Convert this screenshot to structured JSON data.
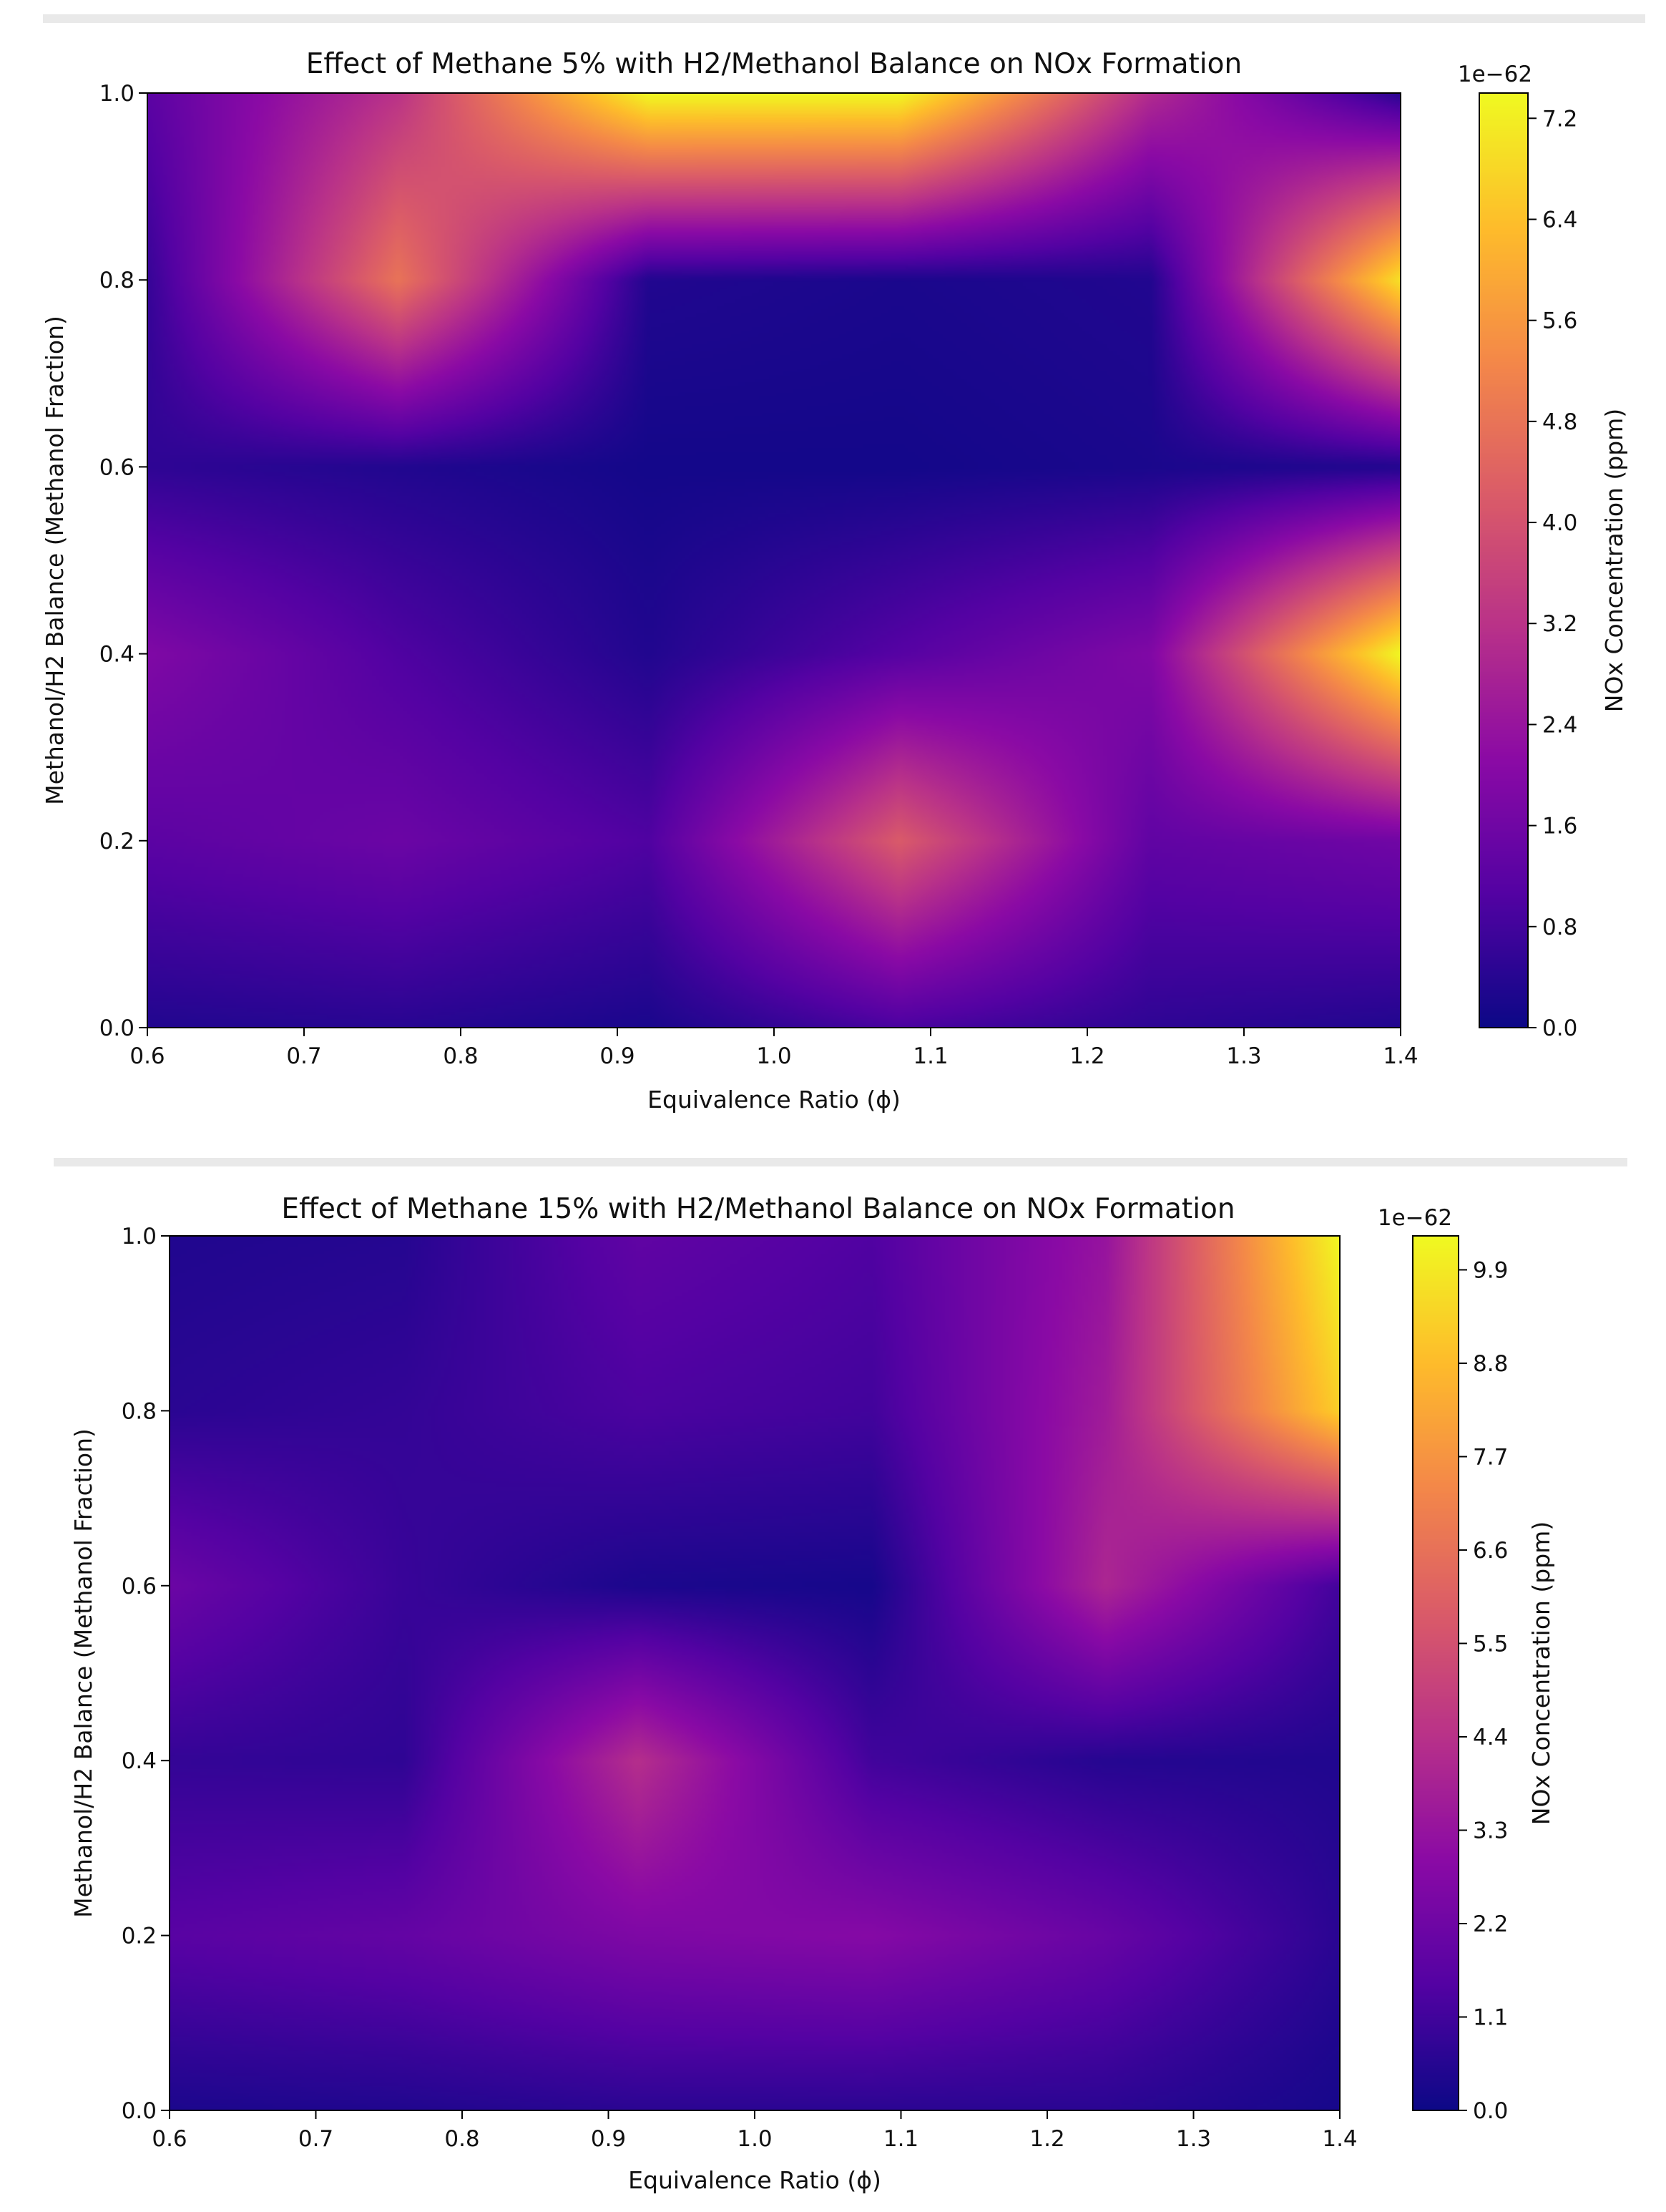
{
  "chart_data": [
    {
      "type": "heatmap",
      "title": "Effect of Methane 5% with H2/Methanol Balance on NOx Formation",
      "xlabel": "Equivalence Ratio (ϕ)",
      "ylabel": "Methanol/H2 Balance (Methanol Fraction)",
      "xlim": [
        0.6,
        1.4
      ],
      "ylim": [
        0.0,
        1.0
      ],
      "xticks": [
        "0.6",
        "0.7",
        "0.8",
        "0.9",
        "1.0",
        "1.1",
        "1.2",
        "1.3",
        "1.4"
      ],
      "yticks": [
        "0.0",
        "0.2",
        "0.4",
        "0.6",
        "0.8",
        "1.0"
      ],
      "x": [
        0.6,
        0.76,
        0.92,
        1.08,
        1.24,
        1.4
      ],
      "y": [
        0.0,
        0.2,
        0.4,
        0.6,
        0.8,
        1.0
      ],
      "z_scale": "1e−62",
      "z_unit_note": "values shown in units of 1e-62 ppm",
      "z": [
        [
          0.3,
          0.4,
          0.2,
          0.9,
          0.5,
          0.3
        ],
        [
          1.2,
          1.5,
          1.0,
          4.2,
          1.3,
          1.6
        ],
        [
          1.9,
          1.0,
          0.3,
          1.1,
          1.9,
          7.4
        ],
        [
          0.5,
          0.3,
          0.1,
          0.1,
          0.2,
          0.3
        ],
        [
          0.6,
          4.8,
          0.3,
          0.2,
          0.3,
          7.0
        ],
        [
          1.2,
          3.2,
          7.4,
          7.4,
          3.0,
          0.4
        ]
      ],
      "colorbar": {
        "label": "NOx Concentration (ppm)",
        "offset_label": "1e−62",
        "min": 0.0,
        "max": 7.4,
        "ticks": [
          "0.0",
          "0.8",
          "1.6",
          "2.4",
          "3.2",
          "4.0",
          "4.8",
          "5.6",
          "6.4",
          "7.2"
        ],
        "colormap": "plasma"
      },
      "grid": false
    },
    {
      "type": "heatmap",
      "title": "Effect of Methane 15% with H2/Methanol Balance on NOx Formation",
      "xlabel": "Equivalence Ratio (ϕ)",
      "ylabel": "Methanol/H2 Balance (Methanol Fraction)",
      "xlim": [
        0.6,
        1.4
      ],
      "ylim": [
        0.0,
        1.0
      ],
      "xticks": [
        "0.6",
        "0.7",
        "0.8",
        "0.9",
        "1.0",
        "1.1",
        "1.2",
        "1.3",
        "1.4"
      ],
      "yticks": [
        "0.0",
        "0.2",
        "0.4",
        "0.6",
        "0.8",
        "1.0"
      ],
      "x": [
        0.6,
        0.76,
        0.92,
        1.08,
        1.24,
        1.4
      ],
      "y": [
        0.0,
        0.2,
        0.4,
        0.6,
        0.8,
        1.0
      ],
      "z_scale": "1e−62",
      "z_unit_note": "values shown in units of 1e-62 ppm",
      "z": [
        [
          0.3,
          0.4,
          0.6,
          0.6,
          0.6,
          0.2
        ],
        [
          1.6,
          1.9,
          2.6,
          2.8,
          2.0,
          0.6
        ],
        [
          0.8,
          0.7,
          4.3,
          1.1,
          0.5,
          0.4
        ],
        [
          2.1,
          0.9,
          0.3,
          0.2,
          4.0,
          1.1
        ],
        [
          0.6,
          0.8,
          1.3,
          1.1,
          3.6,
          9.3
        ],
        [
          0.4,
          0.5,
          1.8,
          1.4,
          3.3,
          10.3
        ]
      ],
      "colorbar": {
        "label": "NOx Concentration (ppm)",
        "offset_label": "1e−62",
        "min": 0.0,
        "max": 10.3,
        "ticks": [
          "0.0",
          "1.1",
          "2.2",
          "3.3",
          "4.4",
          "5.5",
          "6.6",
          "7.7",
          "8.8",
          "9.9"
        ],
        "colormap": "plasma"
      },
      "grid": false
    }
  ]
}
